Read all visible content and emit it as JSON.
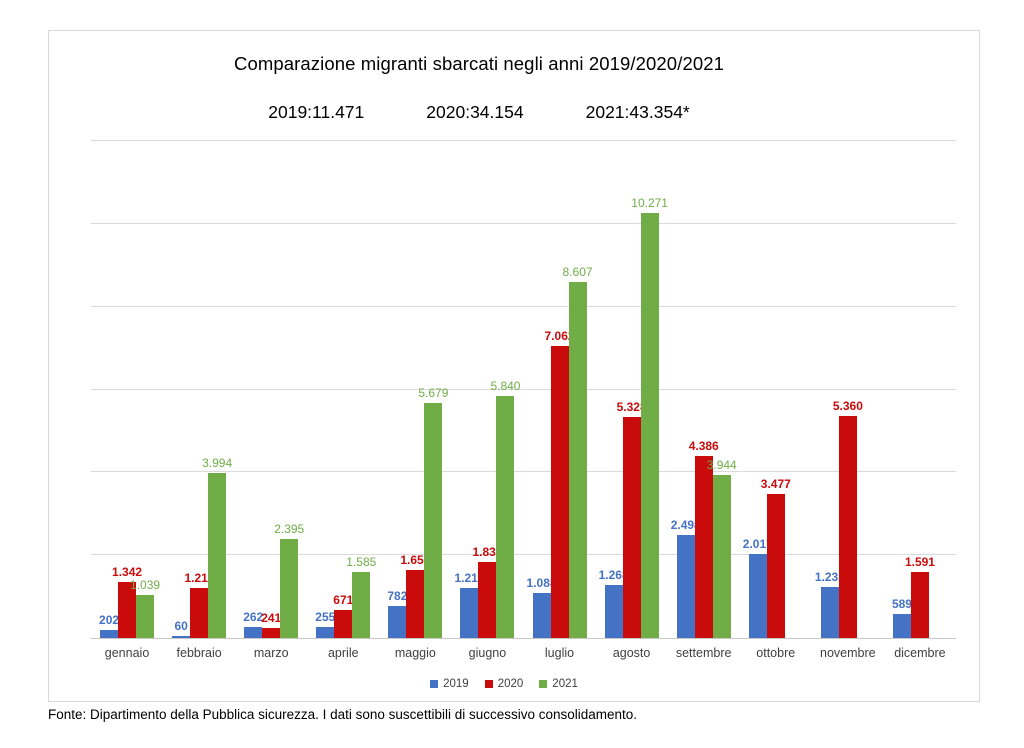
{
  "page": {
    "title": "Comparazione migranti sbarcati negli anni 2019/2020/2021",
    "totals": [
      {
        "year": "2019",
        "label": "2019:11.471"
      },
      {
        "year": "2020",
        "label": "2020:34.154"
      },
      {
        "year": "2021",
        "label": "2021:43.354*"
      }
    ],
    "footer": "Fonte: Dipartimento della Pubblica sicurezza. I dati sono suscettibili di successivo consolidamento."
  },
  "chart_data": {
    "type": "bar",
    "title": "Comparazione migranti sbarcati negli anni 2019/2020/2021",
    "subtitle": "2019:11.471   2020:34.154   2021:43.354*",
    "categories": [
      "gennaio",
      "febbraio",
      "marzo",
      "aprile",
      "maggio",
      "giugno",
      "luglio",
      "agosto",
      "settembre",
      "ottobre",
      "novembre",
      "dicembre"
    ],
    "series": [
      {
        "name": "2019",
        "color": "#4472c4",
        "values": [
          202,
          60,
          262,
          255,
          782,
          1218,
          1088,
          1268,
          2498,
          2017,
          1232,
          589
        ],
        "labels": [
          "202",
          "60",
          "262",
          "255",
          "782",
          "1.218",
          "1.088",
          "1.268",
          "2.498",
          "2.017",
          "1.232",
          "589"
        ]
      },
      {
        "name": "2020",
        "color": "#c90b0b",
        "values": [
          1342,
          1211,
          241,
          671,
          1654,
          1831,
          7062,
          5328,
          4386,
          3477,
          5360,
          1591
        ],
        "labels": [
          "1.342",
          "1.211",
          "241",
          "671",
          "1.654",
          "1.831",
          "7.062",
          "5.328",
          "4.386",
          "3.477",
          "5.360",
          "1.591"
        ]
      },
      {
        "name": "2021",
        "color": "#70ad47",
        "values": [
          1039,
          3994,
          2395,
          1585,
          5679,
          5840,
          8607,
          10271,
          3944,
          null,
          null,
          null
        ],
        "labels": [
          "1.039",
          "3.994",
          "2.395",
          "1.585",
          "5.679",
          "5.840",
          "8.607",
          "10.271",
          "3.944",
          null,
          null,
          null
        ]
      }
    ],
    "ylim": [
      0,
      12000
    ],
    "grid_step": 2000,
    "grid": true,
    "y_axis_labels": "hidden",
    "legend_position": "bottom"
  }
}
